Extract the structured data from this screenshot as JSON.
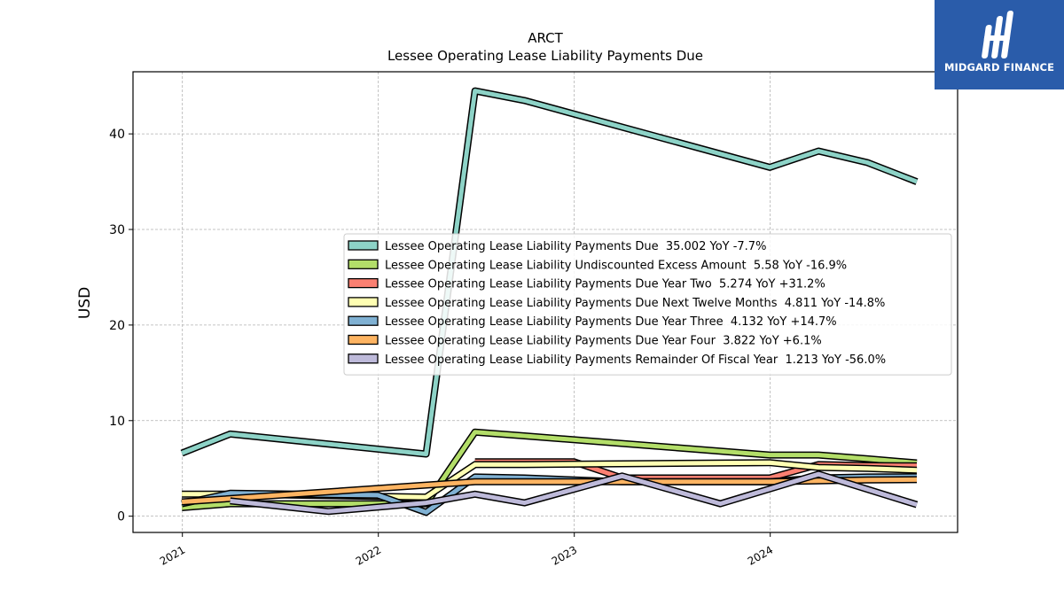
{
  "brand": {
    "name": "MIDGARD FINANCE",
    "color": "#2a5caa"
  },
  "chart_data": {
    "type": "line",
    "title": "ARCT",
    "subtitle": "Lessee Operating Lease Liability Payments Due",
    "xlabel": "",
    "ylabel": "USD",
    "xlim": [
      "2020-10-01",
      "2024-12-15"
    ],
    "ylim": [
      -1.7,
      46.5
    ],
    "grid": true,
    "legend_position": "center-right",
    "x_ticks": [
      {
        "label": "2021",
        "date": "2021-01-01"
      },
      {
        "label": "2022",
        "date": "2022-01-01"
      },
      {
        "label": "2023",
        "date": "2023-01-01"
      },
      {
        "label": "2024",
        "date": "2024-01-01"
      }
    ],
    "y_ticks": [
      0,
      10,
      20,
      30,
      40
    ],
    "series": [
      {
        "name": "Lessee Operating Lease Liability Payments Due",
        "legend": "Lessee Operating Lease Liability Payments Due  35.002 YoY -7.7%",
        "color": "#8dd3c7",
        "points": [
          [
            "2020-12-31",
            6.6
          ],
          [
            "2021-03-31",
            8.6
          ],
          [
            "2022-03-31",
            6.5
          ],
          [
            "2022-06-30",
            44.5
          ],
          [
            "2022-09-30",
            43.5
          ],
          [
            "2023-12-31",
            36.5
          ],
          [
            "2024-03-31",
            38.2
          ],
          [
            "2024-06-30",
            37.0
          ],
          [
            "2024-09-30",
            35.0
          ]
        ]
      },
      {
        "name": "Lessee Operating Lease Liability Undiscounted Excess Amount",
        "legend": "Lessee Operating Lease Liability Undiscounted Excess Amount  5.58 YoY -16.9%",
        "color": "#b3de69",
        "points": [
          [
            "2020-12-31",
            0.9
          ],
          [
            "2021-03-31",
            1.3
          ],
          [
            "2022-03-31",
            1.3
          ],
          [
            "2022-06-30",
            8.8
          ],
          [
            "2022-09-30",
            8.4
          ],
          [
            "2023-12-31",
            6.4
          ],
          [
            "2024-03-31",
            6.4
          ],
          [
            "2024-06-30",
            6.0
          ],
          [
            "2024-09-30",
            5.58
          ]
        ]
      },
      {
        "name": "Lessee Operating Lease Liability Payments Due Year Two",
        "legend": "Lessee Operating Lease Liability Payments Due Year Two  5.274 YoY +31.2%",
        "color": "#fb8072",
        "points": [
          [
            "2022-06-30",
            5.7
          ],
          [
            "2022-09-30",
            5.7
          ],
          [
            "2022-12-31",
            5.7
          ],
          [
            "2023-03-31",
            4.0
          ],
          [
            "2023-12-31",
            4.0
          ],
          [
            "2024-03-31",
            5.4
          ],
          [
            "2024-06-30",
            5.3
          ],
          [
            "2024-09-30",
            5.274
          ]
        ]
      },
      {
        "name": "Lessee Operating Lease Liability Payments Due Next Twelve Months",
        "legend": "Lessee Operating Lease Liability Payments Due Next Twelve Months  4.811 YoY -14.8%",
        "color": "#ffffb3",
        "points": [
          [
            "2020-12-31",
            2.3
          ],
          [
            "2021-03-31",
            2.3
          ],
          [
            "2022-03-31",
            2.0
          ],
          [
            "2022-06-30",
            5.4
          ],
          [
            "2022-09-30",
            5.4
          ],
          [
            "2023-12-31",
            5.6
          ],
          [
            "2024-03-31",
            5.1
          ],
          [
            "2024-06-30",
            5.0
          ],
          [
            "2024-09-30",
            4.811
          ]
        ]
      },
      {
        "name": "Lessee Operating Lease Liability Payments Due Year Three",
        "legend": "Lessee Operating Lease Liability Payments Due Year Three  4.132 YoY +14.7%",
        "color": "#80b1d3",
        "points": [
          [
            "2020-12-31",
            1.3
          ],
          [
            "2021-03-31",
            2.4
          ],
          [
            "2021-12-31",
            2.2
          ],
          [
            "2022-03-31",
            0.4
          ],
          [
            "2022-06-30",
            4.1
          ],
          [
            "2022-09-30",
            4.0
          ],
          [
            "2023-03-31",
            3.6
          ],
          [
            "2023-12-31",
            3.6
          ],
          [
            "2024-03-31",
            4.0
          ],
          [
            "2024-06-30",
            4.1
          ],
          [
            "2024-09-30",
            4.132
          ]
        ]
      },
      {
        "name": "Lessee Operating Lease Liability Payments Due Year Four",
        "legend": "Lessee Operating Lease Liability Payments Due Year Four  3.822 YoY +6.1%",
        "color": "#fdb462",
        "points": [
          [
            "2020-12-31",
            1.5
          ],
          [
            "2022-06-30",
            3.6
          ],
          [
            "2022-09-30",
            3.6
          ],
          [
            "2023-12-31",
            3.6
          ],
          [
            "2024-03-31",
            3.7
          ],
          [
            "2024-06-30",
            3.8
          ],
          [
            "2024-09-30",
            3.822
          ]
        ]
      },
      {
        "name": "Lessee Operating Lease Liability Payments Remainder Of Fiscal Year",
        "legend": "Lessee Operating Lease Liability Payments Remainder Of Fiscal Year  1.213 YoY -56.0%",
        "color": "#bebada",
        "points": [
          [
            "2021-03-31",
            1.6
          ],
          [
            "2021-09-30",
            0.5
          ],
          [
            "2022-03-31",
            1.4
          ],
          [
            "2022-06-30",
            2.3
          ],
          [
            "2022-09-30",
            1.4
          ],
          [
            "2023-03-31",
            4.2
          ],
          [
            "2023-09-30",
            1.3
          ],
          [
            "2024-03-31",
            4.4
          ],
          [
            "2024-09-30",
            1.213
          ]
        ]
      }
    ]
  }
}
